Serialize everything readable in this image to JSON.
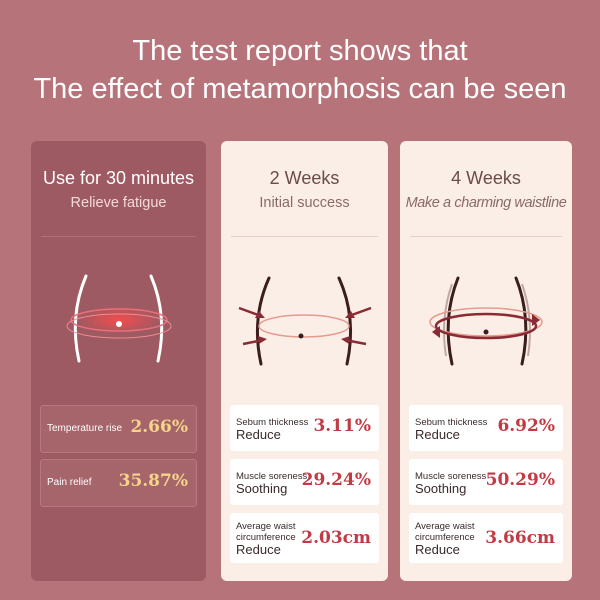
{
  "headline": {
    "line1": "The test report shows that",
    "line2": "The effect of metamorphosis can be seen"
  },
  "panels": [
    {
      "title": "Use for 30 minutes",
      "subtitle": "Relieve fatigue",
      "stats": [
        {
          "label": "Temperature rise",
          "value": "2.66%"
        },
        {
          "label": "Pain relief",
          "value": "35.87%"
        }
      ]
    },
    {
      "title": "2 Weeks",
      "subtitle": "Initial success",
      "stats": [
        {
          "label_small": "Sebum thickness",
          "label_big": "Reduce",
          "value": "3.11%"
        },
        {
          "label_small": "Muscle soreness",
          "label_big": "Soothing",
          "value": "29.24%"
        },
        {
          "label_small": "Average waist",
          "label_small2": "circumference",
          "label_big": "Reduce",
          "value": "2.03cm"
        }
      ]
    },
    {
      "title": "4 Weeks",
      "subtitle": "Make a charming waistline",
      "stats": [
        {
          "label_small": "Sebum thickness",
          "label_big": "Reduce",
          "value": "6.92%"
        },
        {
          "label_small": "Muscle soreness",
          "label_big": "Soothing",
          "value": "50.29%"
        },
        {
          "label_small": "Average waist",
          "label_small2": "circumference",
          "label_big": "Reduce",
          "value": "3.66cm"
        }
      ]
    }
  ],
  "colors": {
    "background": "#b7737a",
    "panel_dark": "#9e5a62",
    "panel_light": "#fbeee6",
    "value_gold": "#f6d48a",
    "value_red": "#c23a43"
  }
}
